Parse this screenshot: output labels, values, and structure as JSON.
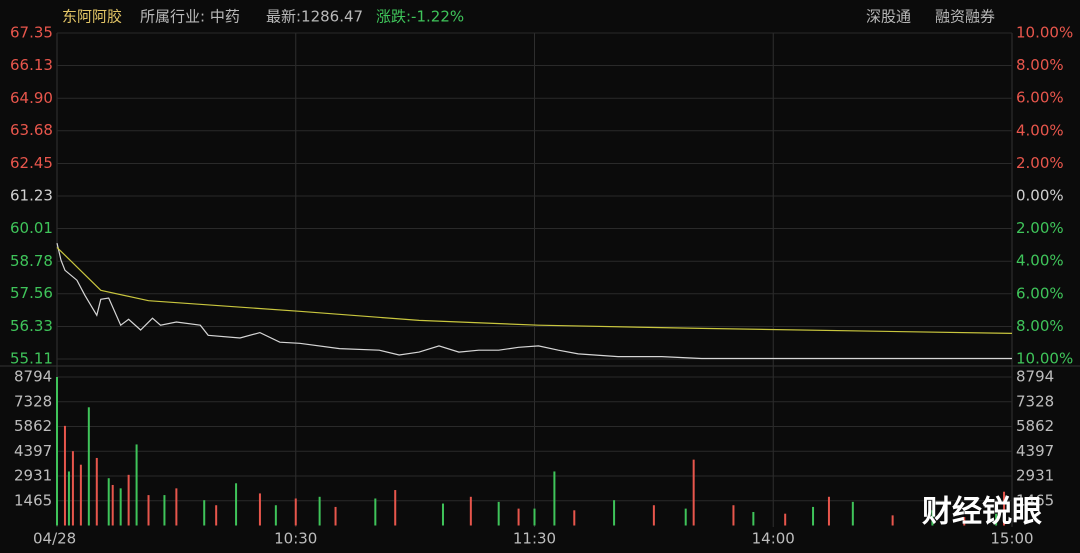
{
  "header": {
    "name": "东阿阿胶",
    "industry": "所属行业: 中药",
    "latest": "最新:1286.47",
    "change": "涨跌:-1.22%",
    "link1": "深股通",
    "link2": "融资融券"
  },
  "watermark": "财经锐眼",
  "chart_data": [
    {
      "type": "line",
      "xlim": [
        0,
        240
      ],
      "xticks": [
        {
          "value": 0,
          "label": "04/28"
        },
        {
          "value": 60,
          "label": "10:30"
        },
        {
          "value": 120,
          "label": "11:30"
        },
        {
          "value": 180,
          "label": "14:00"
        },
        {
          "value": 240,
          "label": "15:00"
        }
      ],
      "ylim": [
        55.11,
        67.35
      ],
      "yticks": [
        55.11,
        {
          "value": 56.33,
          "label": "56.33"
        },
        {
          "value": 57.56,
          "label": "57.56"
        },
        58.78,
        60.01,
        61.23,
        62.45,
        63.68,
        {
          "value": 64.9,
          "label": "64.90"
        },
        66.13,
        67.35
      ],
      "y2lim": [
        -10,
        10
      ],
      "y2ticks": [
        {
          "value": -10,
          "label": "10.00%"
        },
        {
          "value": -8,
          "label": "8.00%"
        },
        {
          "value": -6,
          "label": "6.00%"
        },
        {
          "value": -4,
          "label": "4.00%"
        },
        {
          "value": -2,
          "label": "2.00%"
        },
        {
          "value": 0,
          "label": "0.00%"
        },
        {
          "value": 2,
          "label": "2.00%"
        },
        {
          "value": 4,
          "label": "4.00%"
        },
        {
          "value": 6,
          "label": "6.00%"
        },
        {
          "value": 8,
          "label": "8.00%"
        },
        {
          "value": 10,
          "label": "10.00%"
        }
      ],
      "up_color": "#e8564c",
      "down_color": "#3fc45a",
      "flat_color": "#d0d0d0",
      "series": [
        {
          "color": "#d6d6d6",
          "x": [
            0,
            1,
            2,
            5,
            7,
            10,
            11,
            13,
            16,
            18,
            21,
            24,
            26,
            30,
            36,
            38,
            46,
            51,
            56,
            61,
            71,
            81,
            86,
            91,
            96,
            101,
            106,
            111,
            116,
            121,
            126,
            131,
            141,
            152,
            162,
            187,
            240
          ],
          "values": [
            59.46,
            58.82,
            58.44,
            58.07,
            57.5,
            56.75,
            57.35,
            57.4,
            56.38,
            56.6,
            56.2,
            56.64,
            56.38,
            56.5,
            56.38,
            56.0,
            55.9,
            56.1,
            55.74,
            55.7,
            55.5,
            55.44,
            55.26,
            55.37,
            55.6,
            55.37,
            55.44,
            55.44,
            55.55,
            55.6,
            55.44,
            55.3,
            55.2,
            55.2,
            55.13,
            55.13,
            55.13
          ]
        },
        {
          "color": "#c9c63e",
          "x": [
            0,
            11,
            23,
            61,
            91,
            121,
            162,
            240
          ],
          "values": [
            59.3,
            57.69,
            57.3,
            56.9,
            56.56,
            56.38,
            56.26,
            56.07
          ]
        }
      ]
    },
    {
      "type": "bar",
      "xlim": [
        0,
        240
      ],
      "ylim": [
        0,
        8794
      ],
      "yticks": [
        1465,
        2931,
        4397,
        5862,
        7328,
        8794
      ],
      "series": [
        {
          "color": "#3fc45a",
          "x": [
            0,
            3,
            8,
            13,
            16,
            20,
            27,
            37,
            45,
            55,
            66,
            80,
            97,
            111,
            120,
            125,
            140,
            158,
            175,
            190,
            200,
            220,
            236
          ],
          "values": [
            8794,
            3200,
            7000,
            2800,
            2200,
            4800,
            1800,
            1500,
            2500,
            1200,
            1700,
            1600,
            1300,
            1400,
            1000,
            3200,
            1500,
            1000,
            800,
            1100,
            1400,
            900,
            700
          ]
        },
        {
          "color": "#e8564c",
          "x": [
            2,
            4,
            6,
            10,
            14,
            18,
            23,
            30,
            40,
            51,
            60,
            70,
            85,
            104,
            116,
            130,
            150,
            160,
            170,
            183,
            194,
            210,
            228,
            238
          ],
          "values": [
            5900,
            4400,
            3600,
            4000,
            2400,
            3000,
            1800,
            2200,
            1200,
            1900,
            1600,
            1100,
            2100,
            1700,
            1000,
            900,
            1200,
            3900,
            1200,
            700,
            1700,
            600,
            500,
            2000
          ]
        }
      ]
    }
  ]
}
